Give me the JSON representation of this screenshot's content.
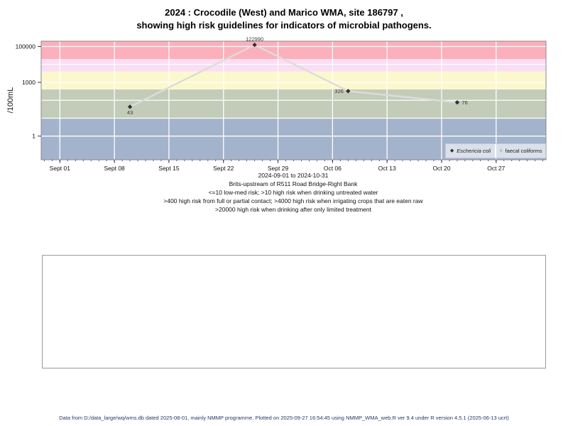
{
  "chart": {
    "title_line1": "2024 : Crocodile (West) and Marico WMA, site 186797 ,",
    "title_line2": "showing high risk guidelines for indicators of microbial pathogens.",
    "y_axis_label": "/100mL",
    "legend": [
      {
        "label": "Eschericia coli",
        "marker": "filled-diamond"
      },
      {
        "label": "faecal coliforms",
        "marker": "open-circle"
      }
    ],
    "notes": [
      "2024-09-01 to 2024-10-31",
      "Brits-upstream of R511 Road Bridge-Right Bank",
      "<=10 low-med risk; >10 high risk when drinking untreated water",
      ">400 high risk from full or partial contact; >4000 high risk when irrigating crops that are eaten raw",
      ">20000 high risk when drinking after only limited treatment"
    ]
  },
  "chart_data": {
    "type": "line",
    "y_scale": "log10",
    "ylim": [
      0.048,
      198000
    ],
    "x_range": {
      "start": "2024-09-01",
      "end": "2024-10-31",
      "pad_days": 2.4,
      "total_days": 64.8
    },
    "x_ticks": [
      {
        "label": "Sept 01",
        "day": 0
      },
      {
        "label": "Sept 08",
        "day": 7
      },
      {
        "label": "Sept 15",
        "day": 14
      },
      {
        "label": "Sept 22",
        "day": 21
      },
      {
        "label": "Sept 29",
        "day": 28
      },
      {
        "label": "Oct 06",
        "day": 35
      },
      {
        "label": "Oct 13",
        "day": 42
      },
      {
        "label": "Oct 20",
        "day": 49
      },
      {
        "label": "Oct 27",
        "day": 56
      }
    ],
    "y_ticks": [
      {
        "label": "100000",
        "value": 100000
      },
      {
        "label": "1000",
        "value": 1000
      },
      {
        "label": "1",
        "value": 1
      }
    ],
    "h_gridlines": [
      1,
      10,
      100,
      1000,
      10000,
      100000
    ],
    "bands": [
      {
        "min": 20000,
        "max": 198000,
        "color": "#fbb0bb",
        "meaning": ">20000 high risk when drinking after only limited treatment"
      },
      {
        "min": 4000,
        "max": 20000,
        "color": "#fbddf4",
        "meaning": ">4000 high risk when irrigating crops that are eaten raw"
      },
      {
        "min": 400,
        "max": 4000,
        "color": "#fcf8ce",
        "meaning": ">400 high risk from full or partial contact"
      },
      {
        "min": 10,
        "max": 400,
        "color": "#c2ccb8",
        "meaning": ">10 high risk when drinking untreated water"
      },
      {
        "min": 0.048,
        "max": 10,
        "color": "#a3b3cc",
        "meaning": "<=10 low-med risk"
      }
    ],
    "series": [
      {
        "name": "Eschericia coli",
        "marker": "filled-diamond",
        "line_color": "#dcdcdc",
        "marker_color": "#303030",
        "points": [
          {
            "date": "2024-09-10",
            "day": 9,
            "value": 43,
            "label": "43",
            "label_pos": "below"
          },
          {
            "date": "2024-09-26",
            "day": 25,
            "value": 122990,
            "label": "122990",
            "label_pos": "above"
          },
          {
            "date": "2024-10-08",
            "day": 37,
            "value": 326,
            "label": "326",
            "label_pos": "left"
          },
          {
            "date": "2024-10-22",
            "day": 51,
            "value": 76,
            "label": "76",
            "label_pos": "right"
          }
        ]
      },
      {
        "name": "faecal coliforms",
        "marker": "open-circle",
        "points": []
      }
    ]
  },
  "footer": "Data from D:/data_large/wq/wms.db dated 2025-08-01, mainly NMMP programme. Plotted on 2025-09-27 16:54:45 using NMMP_WMA_web.R ver 9.4 under R version 4.5.1 (2025-06-13 ucrt)"
}
